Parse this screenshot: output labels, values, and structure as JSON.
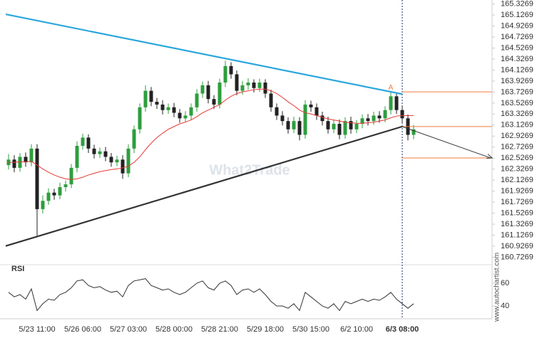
{
  "chart_data": {
    "type": "candlestick",
    "categories": [
      null,
      null,
      null,
      null,
      null,
      "5/23 11:00",
      null,
      null,
      null,
      null,
      null,
      null,
      null,
      "5/26 06:00",
      null,
      null,
      null,
      null,
      null,
      null,
      null,
      "5/27 03:00",
      null,
      null,
      null,
      null,
      null,
      null,
      null,
      "5/28 00:00",
      null,
      null,
      null,
      null,
      null,
      null,
      null,
      "5/28 21:00",
      null,
      null,
      null,
      null,
      null,
      null,
      null,
      "5/29 18:00",
      null,
      null,
      null,
      null,
      null,
      null,
      null,
      "5/30 15:00",
      null,
      null,
      null,
      null,
      null,
      null,
      null,
      "6/2 10:00",
      null,
      null,
      null,
      null,
      null,
      null,
      null,
      "6/3 08:00",
      null,
      null
    ],
    "open": [
      162.4,
      162.5,
      162.35,
      162.55,
      162.45,
      162.7,
      161.6,
      161.75,
      161.9,
      161.85,
      162.0,
      162.05,
      162.35,
      162.75,
      162.9,
      162.7,
      162.6,
      162.65,
      162.55,
      162.45,
      162.5,
      162.25,
      162.7,
      163.05,
      163.45,
      163.75,
      163.55,
      163.5,
      163.4,
      163.45,
      163.35,
      163.25,
      163.3,
      163.45,
      163.7,
      163.85,
      163.6,
      163.5,
      163.9,
      164.2,
      164.05,
      163.75,
      163.85,
      163.9,
      163.8,
      163.9,
      163.7,
      163.45,
      163.3,
      163.2,
      163.05,
      163.2,
      162.95,
      163.5,
      163.45,
      163.3,
      163.2,
      163.05,
      163.15,
      162.95,
      163.2,
      163.05,
      163.15,
      163.25,
      163.2,
      163.3,
      163.25,
      163.4,
      163.65,
      163.4,
      163.25,
      162.95
    ],
    "high": [
      162.6,
      162.58,
      162.62,
      162.63,
      162.78,
      162.78,
      161.85,
      161.98,
      161.97,
      162.08,
      162.12,
      162.42,
      162.83,
      162.97,
      162.96,
      162.77,
      162.72,
      162.73,
      162.62,
      162.57,
      162.58,
      162.78,
      163.12,
      163.52,
      163.85,
      163.82,
      163.62,
      163.58,
      163.52,
      163.53,
      163.42,
      163.38,
      163.52,
      163.78,
      163.92,
      163.93,
      163.67,
      163.97,
      164.3,
      164.27,
      164.12,
      163.93,
      163.98,
      163.96,
      163.97,
      163.96,
      163.77,
      163.52,
      163.38,
      163.27,
      163.28,
      163.27,
      163.58,
      163.57,
      163.52,
      163.37,
      163.28,
      163.22,
      163.23,
      163.27,
      163.28,
      163.22,
      163.32,
      163.33,
      163.37,
      163.38,
      163.47,
      163.75,
      163.72,
      163.47,
      163.32,
      163.13
    ],
    "low": [
      162.32,
      162.27,
      162.28,
      162.37,
      162.38,
      161.12,
      161.52,
      161.68,
      161.77,
      161.78,
      161.92,
      161.98,
      162.27,
      162.68,
      162.62,
      162.52,
      162.53,
      162.47,
      162.37,
      162.38,
      162.15,
      162.18,
      162.62,
      162.97,
      163.37,
      163.47,
      163.42,
      163.32,
      163.33,
      163.27,
      163.17,
      163.18,
      163.22,
      163.37,
      163.62,
      163.52,
      163.42,
      163.43,
      163.82,
      163.97,
      163.67,
      163.68,
      163.77,
      163.72,
      163.73,
      163.62,
      163.37,
      163.22,
      163.12,
      162.97,
      162.98,
      162.85,
      162.88,
      163.37,
      163.22,
      163.12,
      162.97,
      162.98,
      162.87,
      162.88,
      162.97,
      162.98,
      163.07,
      163.12,
      163.13,
      163.17,
      163.18,
      163.32,
      163.33,
      163.17,
      162.85,
      162.87
    ],
    "close": [
      162.5,
      162.35,
      162.55,
      162.45,
      162.7,
      161.6,
      161.75,
      161.9,
      161.85,
      162.0,
      162.05,
      162.35,
      162.75,
      162.9,
      162.7,
      162.6,
      162.65,
      162.55,
      162.45,
      162.5,
      162.25,
      162.7,
      163.05,
      163.45,
      163.75,
      163.55,
      163.5,
      163.4,
      163.45,
      163.35,
      163.25,
      163.3,
      163.45,
      163.7,
      163.85,
      163.6,
      163.5,
      163.9,
      164.2,
      164.05,
      163.75,
      163.85,
      163.9,
      163.8,
      163.9,
      163.7,
      163.45,
      163.3,
      163.2,
      163.05,
      163.2,
      162.95,
      163.5,
      163.45,
      163.3,
      163.2,
      163.05,
      163.15,
      162.95,
      163.2,
      163.05,
      163.15,
      163.25,
      163.2,
      163.3,
      163.25,
      163.4,
      163.65,
      163.4,
      163.25,
      162.95,
      163.05
    ],
    "up_color": "#2e9e3e",
    "down_color": "#222222",
    "sma": {
      "color": "#e53935",
      "values": [
        162.45,
        162.45,
        162.46,
        162.46,
        162.47,
        162.4,
        162.33,
        162.27,
        162.22,
        162.18,
        162.15,
        162.14,
        162.15,
        162.18,
        162.22,
        162.25,
        162.28,
        162.3,
        162.32,
        162.33,
        162.35,
        162.38,
        162.45,
        162.55,
        162.68,
        162.8,
        162.9,
        162.98,
        163.05,
        163.1,
        163.15,
        163.18,
        163.22,
        163.28,
        163.35,
        163.4,
        163.45,
        163.5,
        163.58,
        163.65,
        163.7,
        163.73,
        163.75,
        163.77,
        163.78,
        163.78,
        163.75,
        163.7,
        163.63,
        163.55,
        163.48,
        163.4,
        163.35,
        163.33,
        163.3,
        163.27,
        163.24,
        163.22,
        163.2,
        163.18,
        163.17,
        163.16,
        163.16,
        163.17,
        163.18,
        163.2,
        163.22,
        163.26,
        163.29,
        163.3,
        163.3,
        163.3
      ]
    },
    "trendlines": [
      {
        "color": "#2aa6dc",
        "x": [
          -0.5,
          69
        ],
        "values": [
          165.14,
          163.69
        ]
      },
      {
        "color": "#333333",
        "x": [
          -0.5,
          69
        ],
        "values": [
          160.93,
          163.1
        ]
      }
    ],
    "levels": {
      "color": "#f07a3c",
      "values": [
        163.73,
        163.1,
        162.53
      ]
    },
    "annotation": "A",
    "ylim": [
      160.59,
      165.4
    ],
    "yticks": [
      165.3269,
      165.1269,
      164.9269,
      164.7269,
      164.5269,
      164.3269,
      164.1269,
      163.9269,
      163.7269,
      163.5269,
      163.3269,
      163.1269,
      162.9269,
      162.7269,
      162.5269,
      162.3269,
      162.1269,
      161.9269,
      161.7269,
      161.5269,
      161.3269,
      161.1269,
      160.9269,
      160.7269
    ],
    "watermark": "What2Trade",
    "source": "www.autochartist.com",
    "rsi": {
      "title": "RSI",
      "color": "#333333",
      "ylim": [
        30,
        75
      ],
      "yticks": [
        60,
        40
      ],
      "values": [
        52,
        48,
        50,
        46,
        55,
        36,
        42,
        46,
        45,
        50,
        52,
        56,
        62,
        63,
        58,
        56,
        57,
        54,
        52,
        53,
        48,
        58,
        62,
        63,
        64,
        58,
        56,
        54,
        55,
        52,
        50,
        52,
        56,
        60,
        62,
        56,
        54,
        60,
        62,
        58,
        50,
        54,
        55,
        52,
        55,
        50,
        44,
        40,
        40,
        38,
        42,
        36,
        52,
        48,
        44,
        40,
        38,
        42,
        36,
        44,
        42,
        44,
        46,
        44,
        46,
        45,
        48,
        52,
        46,
        42,
        38,
        42
      ]
    }
  }
}
